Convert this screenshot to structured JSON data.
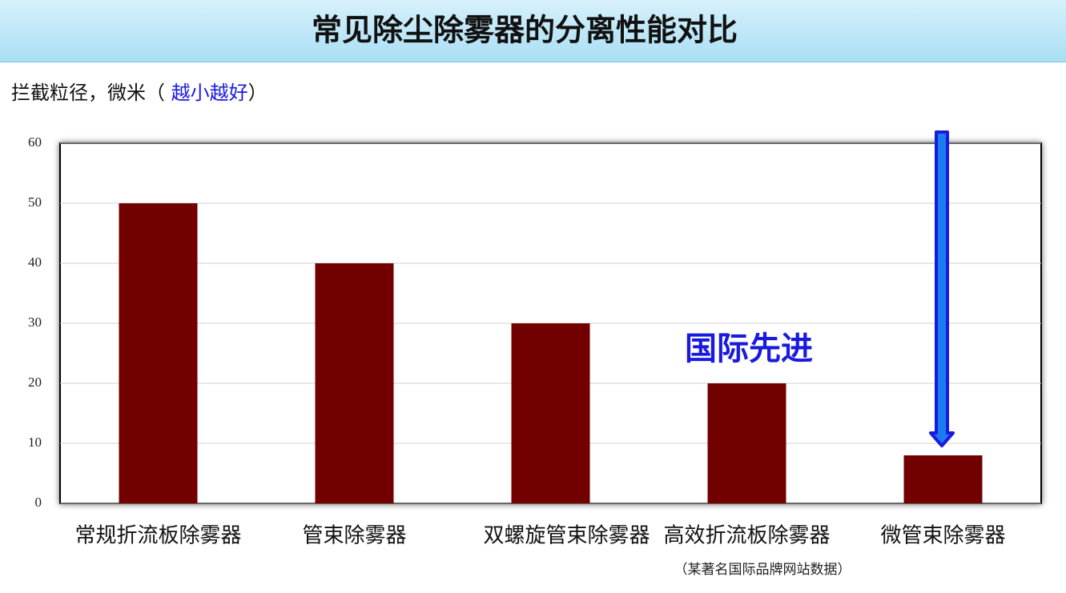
{
  "chart_data": {
    "type": "bar",
    "title": "常见除尘除雾器的分离性能对比",
    "y_label": [
      "拦截粒径，微米（ ",
      "越小越好",
      "）"
    ],
    "categories": [
      "常规折流板除雾器",
      "管束除雾器",
      "双螺旋管束除雾器",
      "高效折流板除雾器",
      "微管束除雾器"
    ],
    "values": [
      50,
      40,
      30,
      20,
      8
    ],
    "color": "#730000",
    "ylim": [
      0,
      60
    ],
    "yticks": [
      0,
      10,
      20,
      30,
      40,
      50,
      60
    ],
    "grid": true,
    "annotation": "国际先进",
    "note": "（某著名国际品牌网站数据）"
  }
}
